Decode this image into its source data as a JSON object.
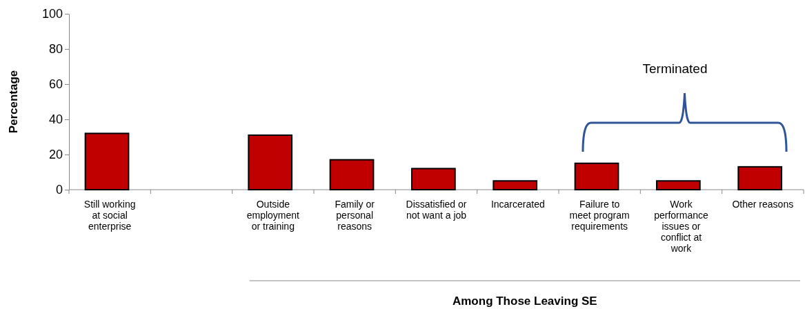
{
  "chart_data": {
    "type": "bar",
    "categories": [
      "Still working at social enterprise",
      null,
      "Outside employment or training",
      "Family or personal reasons",
      "Dissatisfied or not want a job",
      "Incarcerated",
      "Failure to meet program requirements",
      "Work performance issues or conflict at work",
      "Other reasons"
    ],
    "values": [
      32,
      null,
      31,
      17,
      12,
      5,
      15,
      5,
      13
    ],
    "color": "#c00000",
    "ylabel": "Percentage",
    "xlabel": "Among Those Leaving SE",
    "annotations": [
      "Terminated"
    ],
    "ylim": [
      0,
      100
    ],
    "yticks": [
      0,
      20,
      40,
      60,
      80,
      100
    ],
    "grid": false
  }
}
